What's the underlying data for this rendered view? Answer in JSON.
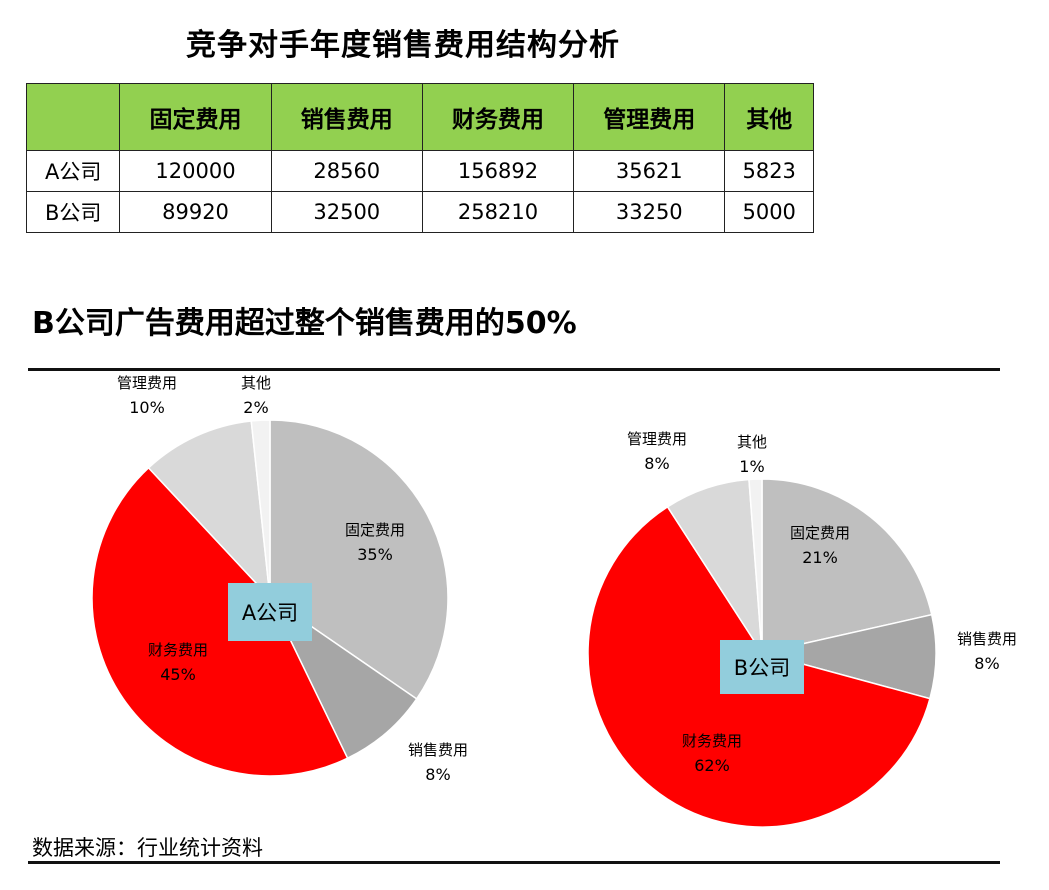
{
  "title": "竞争对手年度销售费用结构分析",
  "table": {
    "headers": [
      "",
      "固定费用",
      "销售费用",
      "财务费用",
      "管理费用",
      "其他"
    ],
    "rows": [
      [
        "A公司",
        "120000",
        "28560",
        "156892",
        "35621",
        "5823"
      ],
      [
        "B公司",
        "89920",
        "32500",
        "258210",
        "33250",
        "5000"
      ]
    ]
  },
  "subtitle": "B公司广告费用超过整个销售费用的50%",
  "source": "数据来源：行业统计资料",
  "chart_data": [
    {
      "type": "pie",
      "center_label": "A公司",
      "categories": [
        "固定费用",
        "销售费用",
        "财务费用",
        "管理费用",
        "其他"
      ],
      "values": [
        120000,
        28560,
        156892,
        35621,
        5823
      ],
      "percent_labels": [
        "35%",
        "8%",
        "45%",
        "10%",
        "2%"
      ],
      "colors": [
        "#bfbfbf",
        "#a6a6a6",
        "#ff0000",
        "#d9d9d9",
        "#f2f2f2"
      ]
    },
    {
      "type": "pie",
      "center_label": "B公司",
      "categories": [
        "固定费用",
        "销售费用",
        "财务费用",
        "管理费用",
        "其他"
      ],
      "values": [
        89920,
        32500,
        258210,
        33250,
        5000
      ],
      "percent_labels": [
        "21%",
        "8%",
        "62%",
        "8%",
        "1%"
      ],
      "colors": [
        "#bfbfbf",
        "#a6a6a6",
        "#ff0000",
        "#d9d9d9",
        "#f2f2f2"
      ]
    }
  ]
}
